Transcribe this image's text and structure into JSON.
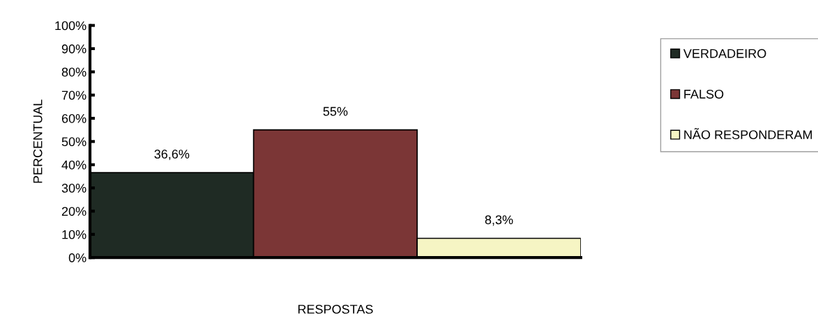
{
  "chart_data": {
    "type": "bar",
    "ylabel": "PERCENTUAL",
    "xlabel": "RESPOSTAS",
    "categories": [
      null
    ],
    "series": [
      {
        "name": "VERDADEIRO",
        "color": "#1f2b24",
        "values": [
          36.6
        ],
        "value_labels": [
          "36,6%"
        ]
      },
      {
        "name": "FALSO",
        "color": "#7b3636",
        "values": [
          55
        ],
        "value_labels": [
          "55%"
        ]
      },
      {
        "name": "NÃO RESPONDERAM",
        "color": "#f6f5c4",
        "values": [
          8.3
        ],
        "value_labels": [
          "8,3%"
        ]
      }
    ],
    "ylim": [
      0,
      100
    ],
    "yticks": [
      {
        "value": 0,
        "label": "0%"
      },
      {
        "value": 10,
        "label": "10%"
      },
      {
        "value": 20,
        "label": "20%"
      },
      {
        "value": 30,
        "label": "30%"
      },
      {
        "value": 40,
        "label": "40%"
      },
      {
        "value": 50,
        "label": "50%"
      },
      {
        "value": 60,
        "label": "60%"
      },
      {
        "value": 70,
        "label": "70%"
      },
      {
        "value": 80,
        "label": "80%"
      },
      {
        "value": 90,
        "label": "90%"
      },
      {
        "value": 100,
        "label": "100%"
      }
    ],
    "grid": false,
    "legend": "top right"
  }
}
